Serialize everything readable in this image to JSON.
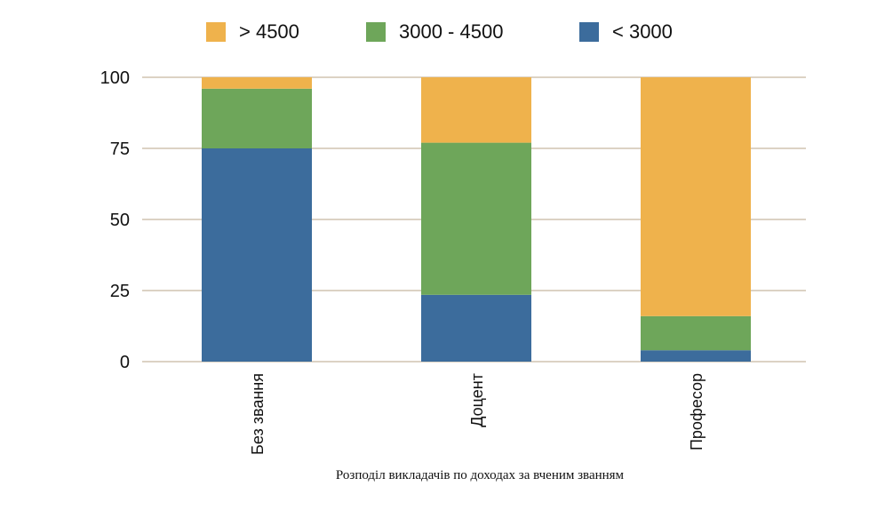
{
  "chart_data": {
    "type": "bar",
    "stacked": true,
    "title": "",
    "caption": "Розподіл викладачів по доходах за вченим званням",
    "categories": [
      "Без звання",
      "Доцент",
      "Професор"
    ],
    "series": [
      {
        "name": "< 3000",
        "color": "#3c6c9c",
        "values": [
          75,
          23.5,
          4
        ]
      },
      {
        "name": "3000 - 4500",
        "color": "#6ea65a",
        "values": [
          21,
          53.5,
          12
        ]
      },
      {
        "name": "> 4500",
        "color": "#efb24c",
        "values": [
          4,
          23,
          84
        ]
      }
    ],
    "legend_order": [
      "> 4500",
      "3000 - 4500",
      "< 3000"
    ],
    "legend_position": "top",
    "ylim": [
      0,
      100
    ],
    "yticks": [
      0,
      25,
      50,
      75,
      100
    ],
    "grid": true,
    "grid_color": "#b9a58a"
  }
}
